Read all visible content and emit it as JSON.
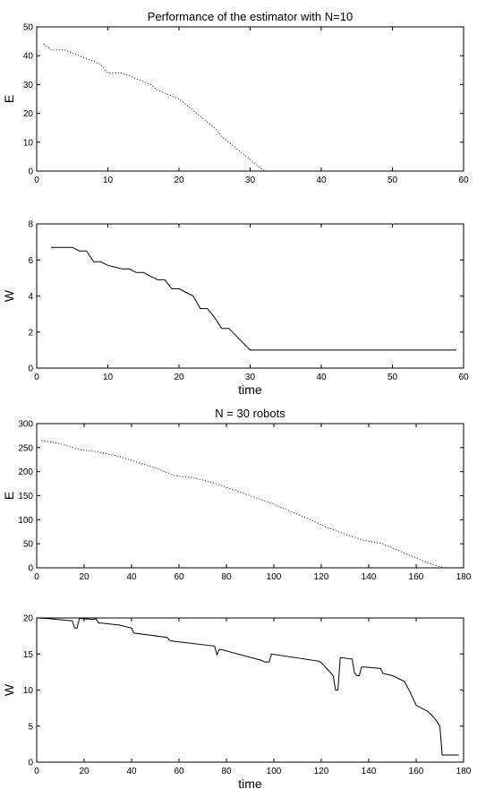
{
  "chart_data": [
    {
      "type": "line",
      "title": "Performance of the estimator with N=10",
      "xlabel": "",
      "ylabel": "E",
      "xlim": [
        0,
        60
      ],
      "ylim": [
        0,
        50
      ],
      "xticks": [
        0,
        10,
        20,
        30,
        40,
        50,
        60
      ],
      "yticks": [
        0,
        10,
        20,
        30,
        40,
        50
      ],
      "grid": false,
      "line_style": "dotted",
      "series": [
        {
          "x": [
            1,
            2,
            3,
            4,
            5,
            6,
            7,
            8,
            9,
            10,
            11,
            12,
            13,
            14,
            15,
            16,
            17,
            18,
            19,
            20,
            21,
            22,
            23,
            24,
            25,
            26,
            27,
            28,
            29,
            30,
            31,
            32
          ],
          "values": [
            44,
            42,
            42,
            42,
            41,
            40,
            39,
            38,
            37,
            34,
            34,
            34,
            33,
            32,
            31,
            30,
            28,
            27,
            26,
            25,
            23,
            21,
            19,
            17,
            15,
            12,
            10,
            8,
            6,
            4,
            2,
            0
          ]
        }
      ]
    },
    {
      "type": "line",
      "title": "",
      "xlabel": "time",
      "ylabel": "W",
      "xlim": [
        0,
        60
      ],
      "ylim": [
        0,
        8
      ],
      "xticks": [
        0,
        10,
        20,
        30,
        40,
        50,
        60
      ],
      "yticks": [
        0,
        2,
        4,
        6,
        8
      ],
      "grid": false,
      "line_style": "solid",
      "series": [
        {
          "x": [
            2,
            5,
            6,
            7,
            8,
            9,
            10,
            12,
            13,
            14,
            15,
            16,
            17,
            18,
            19,
            20,
            21,
            22,
            23,
            24,
            25,
            26,
            27,
            28,
            29,
            30,
            59
          ],
          "values": [
            6.7,
            6.7,
            6.5,
            6.5,
            5.9,
            5.9,
            5.7,
            5.5,
            5.5,
            5.3,
            5.3,
            5.1,
            4.9,
            4.9,
            4.4,
            4.4,
            4.2,
            4.0,
            3.3,
            3.3,
            2.8,
            2.2,
            2.2,
            1.8,
            1.4,
            1.0,
            1.0
          ]
        }
      ]
    },
    {
      "type": "line",
      "title": "N = 30 robots",
      "xlabel": "",
      "ylabel": "E",
      "xlim": [
        0,
        180
      ],
      "ylim": [
        0,
        300
      ],
      "xticks": [
        0,
        20,
        40,
        60,
        80,
        100,
        120,
        140,
        160,
        180
      ],
      "yticks": [
        0,
        50,
        100,
        150,
        200,
        250,
        300
      ],
      "grid": false,
      "line_style": "dotted",
      "series": [
        {
          "x": [
            2,
            10,
            18,
            26,
            34,
            42,
            50,
            58,
            66,
            74,
            82,
            90,
            98,
            106,
            114,
            122,
            130,
            138,
            146,
            154,
            162,
            168,
            172
          ],
          "values": [
            265,
            258,
            246,
            241,
            233,
            220,
            208,
            192,
            187,
            178,
            164,
            150,
            136,
            120,
            103,
            85,
            70,
            57,
            50,
            33,
            16,
            5,
            0
          ]
        }
      ]
    },
    {
      "type": "line",
      "title": "",
      "xlabel": "time",
      "ylabel": "W",
      "xlim": [
        0,
        180
      ],
      "ylim": [
        0,
        20
      ],
      "xticks": [
        0,
        20,
        40,
        60,
        80,
        100,
        120,
        140,
        160,
        180
      ],
      "yticks": [
        0,
        5,
        10,
        15,
        20
      ],
      "grid": false,
      "line_style": "solid",
      "series": [
        {
          "x": [
            0,
            5,
            15,
            16,
            17,
            18,
            19,
            24,
            25,
            26,
            27,
            35,
            40,
            41,
            55,
            56,
            57,
            75,
            76,
            77,
            78,
            95,
            96,
            98,
            99,
            119,
            120,
            125,
            126,
            127,
            128,
            133,
            134,
            135,
            136,
            137,
            138,
            145,
            146,
            150,
            155,
            157,
            160,
            165,
            168,
            170,
            171,
            172,
            178
          ],
          "values": [
            20,
            19.9,
            19.6,
            18.6,
            18.6,
            19.9,
            19.9,
            19.8,
            19.9,
            19.3,
            19.3,
            19.0,
            18.6,
            17.9,
            17.3,
            16.9,
            16.8,
            16.1,
            14.9,
            15.6,
            15.6,
            14.1,
            13.9,
            13.9,
            15.0,
            14.0,
            13.8,
            12.0,
            10.0,
            10.0,
            14.5,
            14.3,
            12.4,
            12.0,
            12.0,
            13.2,
            13.2,
            13.0,
            12.3,
            12.0,
            11.2,
            10.0,
            7.9,
            7.0,
            6.0,
            5.0,
            1.0,
            1.0,
            1.0
          ]
        }
      ]
    }
  ]
}
